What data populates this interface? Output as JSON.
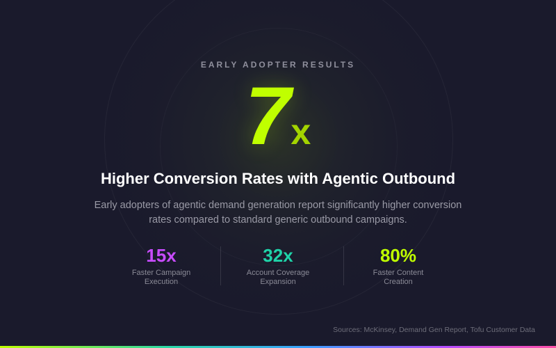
{
  "hero": {
    "eyebrow": "EARLY ADOPTER RESULTS",
    "number": "7",
    "suffix": "x",
    "headline": "Higher Conversion Rates with Agentic Outbound",
    "description": "Early adopters of agentic demand generation report significantly higher conversion rates compared to standard generic outbound campaigns."
  },
  "stats": [
    {
      "value": "15x",
      "label": "Faster Campaign Execution",
      "color": "#c94cff"
    },
    {
      "value": "32x",
      "label": "Account Coverage Expansion",
      "color": "#1fd3a8"
    },
    {
      "value": "80%",
      "label": "Faster Content Creation",
      "color": "#c0ff00"
    }
  ],
  "footer": {
    "sources": "Sources: McKinsey, Demand Gen Report, Tofu Customer Data"
  },
  "colors": {
    "background": "#1a1a2c",
    "accent": "#c0ff00"
  }
}
